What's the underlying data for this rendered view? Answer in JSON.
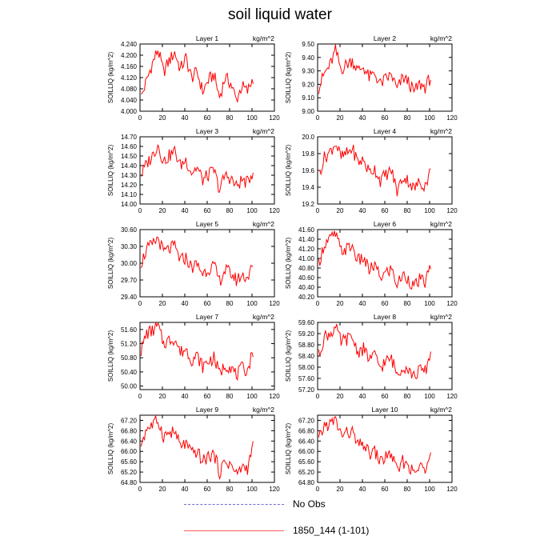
{
  "title": "soil liquid water",
  "legend": {
    "items": [
      {
        "label": "No Obs",
        "color": "#6b6bd6",
        "style": "dashed"
      },
      {
        "label": "1850_144 (1-101)",
        "color": "#ff5a5a",
        "style": "solid"
      }
    ]
  },
  "chart_data": [
    {
      "type": "line",
      "title": "Layer 1",
      "unit": "kg/m^2",
      "ylabel": "SOILLIQ  (kg/m^2)",
      "ylim": [
        4.0,
        4.24
      ],
      "yticks": [
        "4.000",
        "4.040",
        "4.080",
        "4.120",
        "4.160",
        "4.200",
        "4.240"
      ],
      "xlim": [
        0,
        120
      ],
      "xticks": [
        "0",
        "20",
        "40",
        "60",
        "80",
        "100",
        "120"
      ],
      "x_range": [
        1,
        101
      ],
      "color": "#ff0000",
      "anchors": [
        4.05,
        4.11,
        4.17,
        4.22,
        4.14,
        4.18,
        4.21,
        4.15,
        4.19,
        4.12,
        4.14,
        4.07,
        4.11,
        4.13,
        4.05,
        4.12,
        4.1,
        4.04,
        4.09,
        4.07,
        4.12
      ]
    },
    {
      "type": "line",
      "title": "Layer 2",
      "unit": "kg/m^2",
      "ylabel": "SOILLIQ  (kg/m^2)",
      "ylim": [
        9.0,
        9.5
      ],
      "yticks": [
        "9.00",
        "9.10",
        "9.20",
        "9.30",
        "9.40",
        "9.50"
      ],
      "xlim": [
        0,
        120
      ],
      "xticks": [
        "0",
        "20",
        "40",
        "60",
        "80",
        "100",
        "120"
      ],
      "x_range": [
        1,
        101
      ],
      "color": "#ff0000",
      "anchors": [
        9.17,
        9.28,
        9.34,
        9.45,
        9.31,
        9.35,
        9.38,
        9.3,
        9.33,
        9.25,
        9.28,
        9.2,
        9.24,
        9.27,
        9.16,
        9.25,
        9.22,
        9.14,
        9.2,
        9.18,
        9.25
      ]
    },
    {
      "type": "line",
      "title": "Layer 3",
      "unit": "kg/m^2",
      "ylabel": "SOILLIQ  (kg/m^2)",
      "ylim": [
        14.0,
        14.7
      ],
      "yticks": [
        "14.00",
        "14.10",
        "14.20",
        "14.30",
        "14.40",
        "14.50",
        "14.60",
        "14.70"
      ],
      "xlim": [
        0,
        120
      ],
      "xticks": [
        "0",
        "20",
        "40",
        "60",
        "80",
        "100",
        "120"
      ],
      "x_range": [
        1,
        101
      ],
      "color": "#ff0000",
      "anchors": [
        14.3,
        14.42,
        14.5,
        14.62,
        14.44,
        14.5,
        14.55,
        14.4,
        14.46,
        14.33,
        14.38,
        14.25,
        14.3,
        14.35,
        14.15,
        14.3,
        14.27,
        14.18,
        14.25,
        14.22,
        14.35
      ]
    },
    {
      "type": "line",
      "title": "Layer 4",
      "unit": "kg/m^2",
      "ylabel": "SOILLIQ  (kg/m^2)",
      "ylim": [
        19.2,
        20.0
      ],
      "yticks": [
        "19.2",
        "19.4",
        "19.6",
        "19.8",
        "20.0"
      ],
      "xlim": [
        0,
        120
      ],
      "xticks": [
        "0",
        "20",
        "40",
        "60",
        "80",
        "100",
        "120"
      ],
      "x_range": [
        1,
        101
      ],
      "color": "#ff0000",
      "anchors": [
        19.55,
        19.75,
        19.82,
        19.93,
        19.75,
        19.8,
        19.86,
        19.7,
        19.72,
        19.58,
        19.62,
        19.48,
        19.55,
        19.6,
        19.35,
        19.52,
        19.48,
        19.38,
        19.46,
        19.42,
        19.6
      ]
    },
    {
      "type": "line",
      "title": "Layer 5",
      "unit": "kg/m^2",
      "ylabel": "SOILLIQ  (kg/m^2)",
      "ylim": [
        29.4,
        30.6
      ],
      "yticks": [
        "29.40",
        "29.70",
        "30.00",
        "30.30",
        "30.60"
      ],
      "xlim": [
        0,
        120
      ],
      "xticks": [
        "0",
        "20",
        "40",
        "60",
        "80",
        "100",
        "120"
      ],
      "x_range": [
        1,
        101
      ],
      "color": "#ff0000",
      "anchors": [
        30.0,
        30.25,
        30.32,
        30.45,
        30.2,
        30.25,
        30.3,
        30.05,
        30.1,
        29.92,
        29.98,
        29.82,
        29.9,
        29.95,
        29.68,
        29.88,
        29.82,
        29.7,
        29.78,
        29.75,
        29.95
      ]
    },
    {
      "type": "line",
      "title": "Layer 6",
      "unit": "kg/m^2",
      "ylabel": "SOILLIQ  (kg/m^2)",
      "ylim": [
        40.2,
        41.6
      ],
      "yticks": [
        "40.20",
        "40.40",
        "40.60",
        "40.80",
        "41.00",
        "41.20",
        "41.40",
        "41.60"
      ],
      "xlim": [
        0,
        120
      ],
      "xticks": [
        "0",
        "20",
        "40",
        "60",
        "80",
        "100",
        "120"
      ],
      "x_range": [
        1,
        101
      ],
      "color": "#ff0000",
      "anchors": [
        40.9,
        41.3,
        41.4,
        41.5,
        41.15,
        41.2,
        41.25,
        40.95,
        41.0,
        40.75,
        40.85,
        40.6,
        40.7,
        40.78,
        40.45,
        40.65,
        40.58,
        40.4,
        40.55,
        40.5,
        40.85
      ]
    },
    {
      "type": "line",
      "title": "Layer 7",
      "unit": "kg/m^2",
      "ylabel": "SOILLIQ  (kg/m^2)",
      "ylim": [
        49.9,
        51.8
      ],
      "yticks": [
        "50.00",
        "50.40",
        "50.80",
        "51.20",
        "51.60"
      ],
      "xlim": [
        0,
        120
      ],
      "xticks": [
        "0",
        "20",
        "40",
        "60",
        "80",
        "100",
        "120"
      ],
      "x_range": [
        1,
        101
      ],
      "color": "#ff0000",
      "anchors": [
        51.0,
        51.5,
        51.55,
        51.7,
        51.2,
        51.3,
        51.35,
        50.95,
        51.05,
        50.75,
        50.85,
        50.55,
        50.7,
        50.8,
        50.35,
        50.6,
        50.55,
        50.3,
        50.5,
        50.45,
        51.0
      ]
    },
    {
      "type": "line",
      "title": "Layer 8",
      "unit": "kg/m^2",
      "ylabel": "SOILLIQ  (kg/m^2)",
      "ylim": [
        57.2,
        59.6
      ],
      "yticks": [
        "57.20",
        "57.60",
        "58.00",
        "58.40",
        "58.80",
        "59.20",
        "59.60"
      ],
      "xlim": [
        0,
        120
      ],
      "xticks": [
        "0",
        "20",
        "40",
        "60",
        "80",
        "100",
        "120"
      ],
      "x_range": [
        1,
        101
      ],
      "color": "#ff0000",
      "anchors": [
        58.4,
        59.1,
        59.2,
        59.4,
        58.9,
        59.0,
        59.05,
        58.55,
        58.65,
        58.3,
        58.4,
        58.0,
        58.2,
        58.3,
        57.75,
        58.05,
        57.95,
        57.65,
        57.9,
        57.85,
        58.5
      ]
    },
    {
      "type": "line",
      "title": "Layer 9",
      "unit": "kg/m^2",
      "ylabel": "SOILLIQ  (kg/m^2)",
      "ylim": [
        64.8,
        67.4
      ],
      "yticks": [
        "64.80",
        "65.20",
        "65.60",
        "66.00",
        "66.40",
        "66.80",
        "67.20"
      ],
      "xlim": [
        0,
        120
      ],
      "xticks": [
        "0",
        "20",
        "40",
        "60",
        "80",
        "100",
        "120"
      ],
      "x_range": [
        1,
        101
      ],
      "color": "#ff0000",
      "anchors": [
        66.3,
        66.9,
        67.0,
        67.2,
        66.6,
        66.7,
        66.75,
        66.2,
        66.3,
        65.9,
        66.0,
        65.6,
        65.8,
        65.9,
        65.2,
        65.6,
        65.5,
        65.1,
        65.4,
        65.35,
        66.2
      ]
    },
    {
      "type": "line",
      "title": "Layer 10",
      "unit": "kg/m^2",
      "ylabel": "SOILLIQ  (kg/m^2)",
      "ylim": [
        64.8,
        67.4
      ],
      "yticks": [
        "64.80",
        "65.20",
        "65.60",
        "66.00",
        "66.40",
        "66.80",
        "67.20"
      ],
      "xlim": [
        0,
        120
      ],
      "xticks": [
        "0",
        "20",
        "40",
        "60",
        "80",
        "100",
        "120"
      ],
      "x_range": [
        1,
        101
      ],
      "color": "#ff0000",
      "anchors": [
        66.4,
        67.0,
        67.05,
        67.2,
        66.65,
        66.7,
        66.75,
        66.2,
        66.3,
        65.9,
        66.0,
        65.6,
        65.8,
        65.9,
        65.2,
        65.6,
        65.5,
        65.1,
        65.4,
        65.35,
        66.2
      ]
    }
  ]
}
